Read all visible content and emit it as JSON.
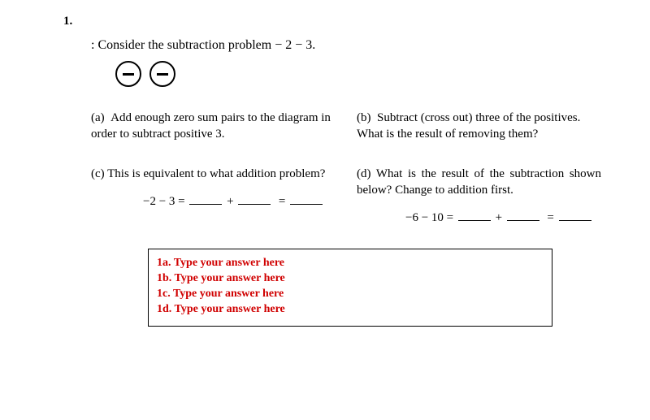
{
  "question_number": "1.",
  "intro_prefix": ": ",
  "intro_text": "Consider the subtraction problem − 2 − 3.",
  "minus_tokens": 2,
  "parts": {
    "a": {
      "label": "(a)",
      "text": "Add enough zero sum pairs to the diagram in order to subtract positive 3."
    },
    "b": {
      "label": "(b)",
      "text": "Subtract (cross out) three of the positives. What is the result of removing them?"
    },
    "c": {
      "label": "(c)",
      "text": "This is equivalent to what addition problem?",
      "eq_lhs": "−2 − 3 =",
      "eq_plus": "+",
      "eq_eq": "="
    },
    "d": {
      "label": "(d)",
      "text": "What is the result of the subtraction shown below? Change to addition first.",
      "eq_lhs": "−6 − 10 =",
      "eq_plus": "+",
      "eq_eq": "="
    }
  },
  "answers": {
    "a": "1a. Type your answer here",
    "b": "1b. Type your answer here",
    "c": "1c. Type your answer here",
    "d": "1d. Type your answer here"
  },
  "colors": {
    "answer_text": "#d00000",
    "border": "#000000",
    "text": "#000000",
    "bg": "#ffffff"
  }
}
